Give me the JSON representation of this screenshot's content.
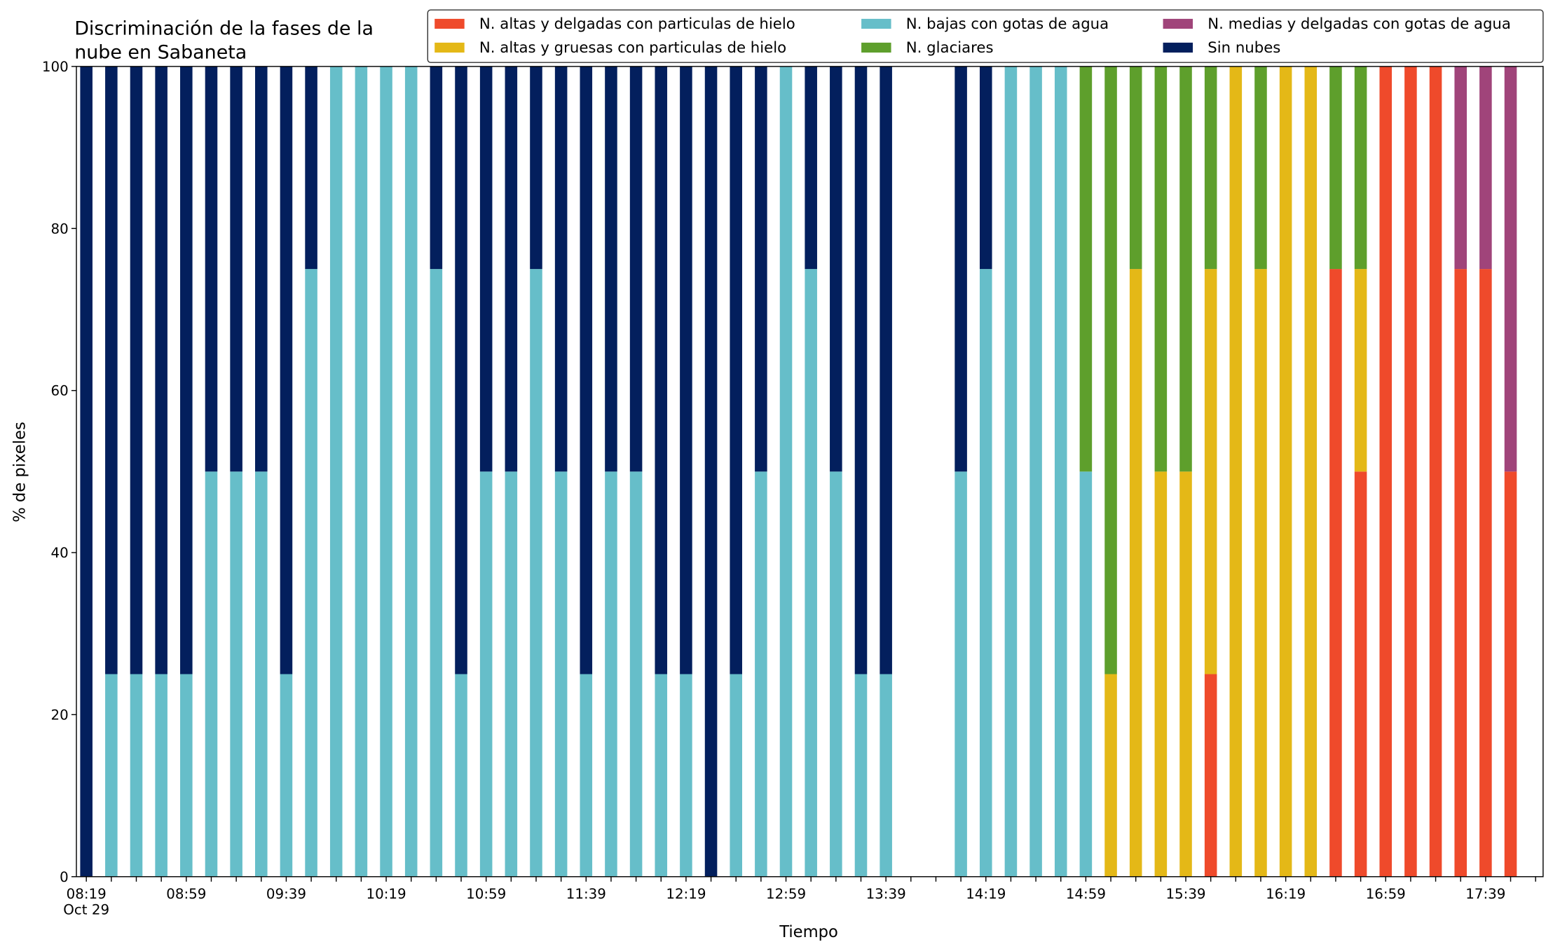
{
  "chart_data": {
    "type": "stacked_bar",
    "title": "Discriminación de la fases de la\nnube en Sabaneta",
    "x_label": "Tiempo",
    "y_label": "% de pixeles",
    "categories": [
      "08:19\nOct 29",
      null,
      null,
      null,
      "08:59",
      null,
      null,
      null,
      "09:39",
      null,
      null,
      null,
      "10:19",
      null,
      null,
      null,
      "10:59",
      null,
      null,
      null,
      "11:39",
      null,
      null,
      null,
      "12:19",
      null,
      null,
      null,
      "12:59",
      null,
      null,
      null,
      "13:39",
      null,
      null,
      null,
      "14:19",
      null,
      null,
      null,
      "14:59",
      null,
      null,
      null,
      "15:39",
      null,
      null,
      null,
      "16:19",
      null,
      null,
      null,
      "16:59",
      null,
      null,
      null,
      "17:39",
      null
    ],
    "ylim": [
      0,
      100
    ],
    "yticks": [
      0,
      20,
      40,
      60,
      80,
      100
    ],
    "legend_position": "upper right",
    "series": [
      {
        "name": "N. altas y delgadas con particulas de hielo",
        "color": "#ef4a2b",
        "values": [
          0,
          0,
          0,
          0,
          0,
          0,
          0,
          0,
          0,
          0,
          0,
          0,
          0,
          0,
          0,
          0,
          0,
          0,
          0,
          0,
          0,
          0,
          0,
          0,
          0,
          0,
          0,
          0,
          0,
          0,
          0,
          0,
          0,
          null,
          null,
          0,
          0,
          0,
          0,
          0,
          0,
          0,
          0,
          0,
          0,
          25,
          0,
          0,
          0,
          0,
          75,
          50,
          100,
          100,
          100,
          75,
          75,
          50
        ]
      },
      {
        "name": "N. altas y gruesas con particulas de hielo",
        "color": "#e4b817",
        "values": [
          0,
          0,
          0,
          0,
          0,
          0,
          0,
          0,
          0,
          0,
          0,
          0,
          0,
          0,
          0,
          0,
          0,
          0,
          0,
          0,
          0,
          0,
          0,
          0,
          0,
          0,
          0,
          0,
          0,
          0,
          0,
          0,
          0,
          null,
          null,
          0,
          0,
          0,
          0,
          0,
          0,
          25,
          75,
          50,
          50,
          50,
          100,
          75,
          100,
          100,
          0,
          25,
          0,
          0,
          0,
          0,
          0,
          0
        ]
      },
      {
        "name": "N. bajas con gotas de agua",
        "color": "#66bec9",
        "values": [
          0,
          25,
          25,
          25,
          25,
          50,
          50,
          50,
          25,
          75,
          100,
          100,
          100,
          100,
          75,
          25,
          50,
          50,
          75,
          50,
          25,
          50,
          50,
          25,
          25,
          0,
          25,
          50,
          100,
          75,
          50,
          25,
          25,
          null,
          null,
          50,
          75,
          100,
          100,
          100,
          50,
          0,
          0,
          0,
          0,
          0,
          0,
          0,
          0,
          0,
          0,
          0,
          0,
          0,
          0,
          0,
          0,
          0
        ]
      },
      {
        "name": "N. glaciares",
        "color": "#5e9f2c",
        "values": [
          0,
          0,
          0,
          0,
          0,
          0,
          0,
          0,
          0,
          0,
          0,
          0,
          0,
          0,
          0,
          0,
          0,
          0,
          0,
          0,
          0,
          0,
          0,
          0,
          0,
          0,
          0,
          0,
          0,
          0,
          0,
          0,
          0,
          null,
          null,
          0,
          0,
          0,
          0,
          0,
          50,
          75,
          25,
          50,
          50,
          25,
          0,
          25,
          0,
          0,
          25,
          25,
          0,
          0,
          0,
          0,
          0,
          0
        ]
      },
      {
        "name": "N. medias y delgadas con gotas de agua",
        "color": "#a0447a",
        "values": [
          0,
          0,
          0,
          0,
          0,
          0,
          0,
          0,
          0,
          0,
          0,
          0,
          0,
          0,
          0,
          0,
          0,
          0,
          0,
          0,
          0,
          0,
          0,
          0,
          0,
          0,
          0,
          0,
          0,
          0,
          0,
          0,
          0,
          null,
          null,
          0,
          0,
          0,
          0,
          0,
          0,
          0,
          0,
          0,
          0,
          0,
          0,
          0,
          0,
          0,
          0,
          0,
          0,
          0,
          0,
          25,
          25,
          50
        ]
      },
      {
        "name": "Sin nubes",
        "color": "#031f5d",
        "values": [
          100,
          75,
          75,
          75,
          75,
          50,
          50,
          50,
          75,
          25,
          0,
          0,
          0,
          0,
          25,
          75,
          50,
          50,
          25,
          50,
          75,
          50,
          50,
          75,
          75,
          100,
          75,
          50,
          0,
          25,
          50,
          75,
          75,
          null,
          null,
          50,
          25,
          0,
          0,
          0,
          0,
          0,
          0,
          0,
          0,
          0,
          0,
          0,
          0,
          0,
          0,
          0,
          0,
          0,
          0,
          0,
          0,
          0
        ]
      }
    ]
  }
}
